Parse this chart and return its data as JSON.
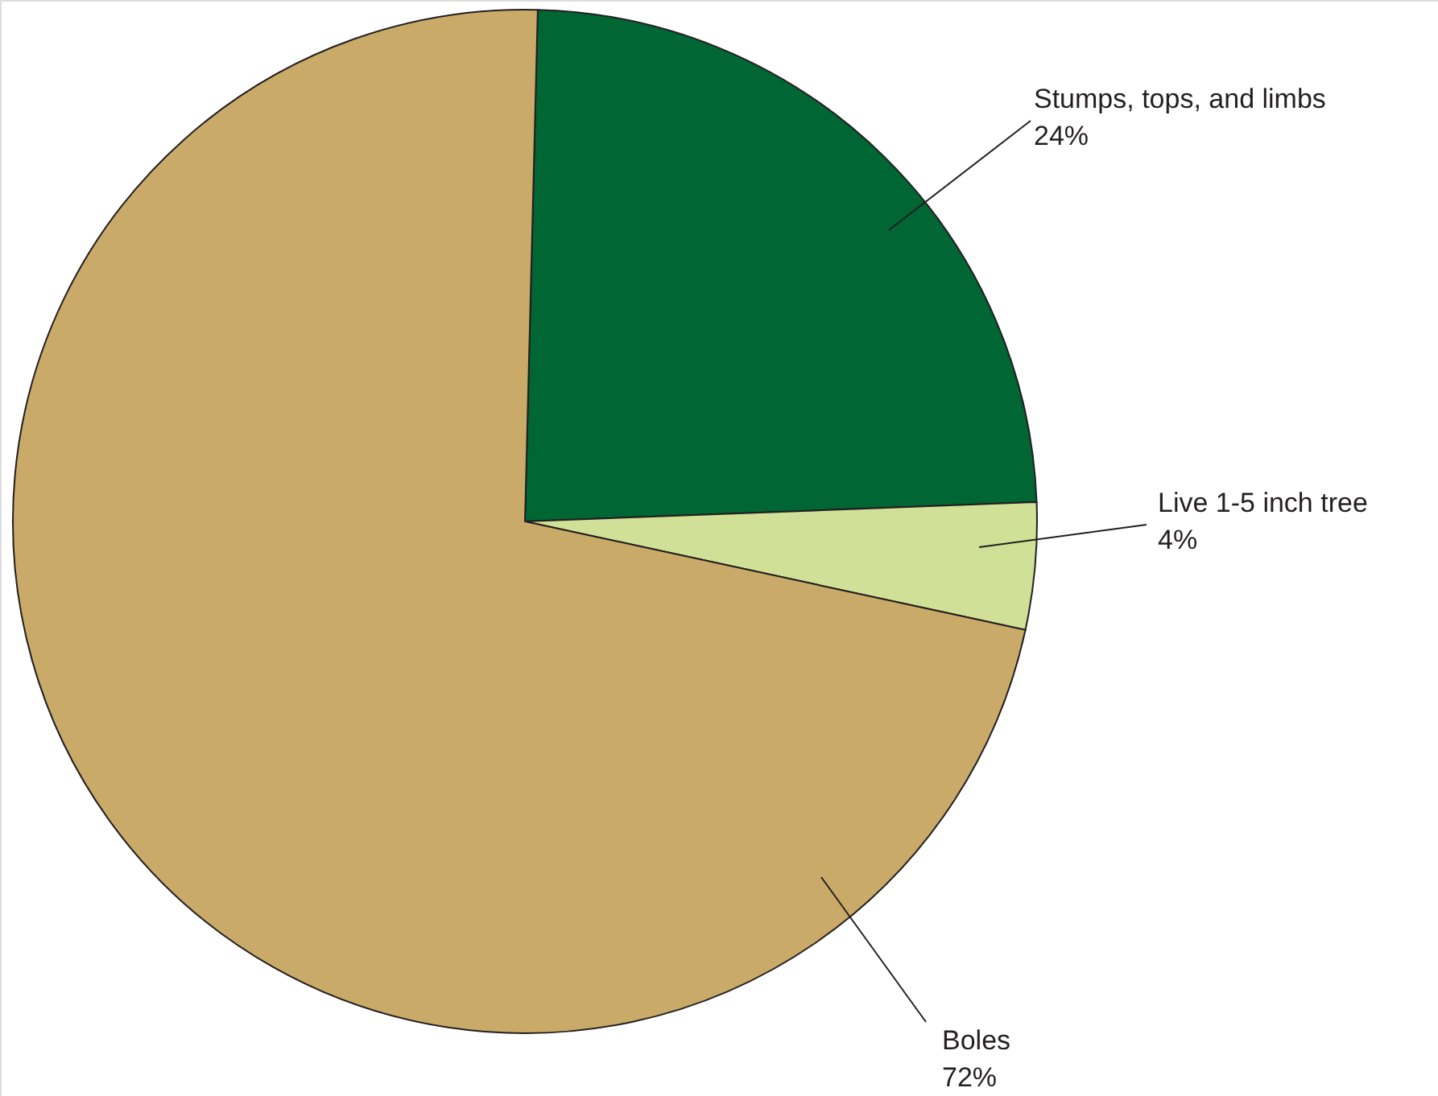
{
  "chart_data": {
    "type": "pie",
    "categories": [
      "Stumps, tops, and limbs",
      "Live 1-5 inch tree",
      "Boles"
    ],
    "values": [
      24,
      4,
      72
    ],
    "colors": [
      "#006633",
      "#d0e096",
      "#c9aa69"
    ],
    "value_labels": [
      "24%",
      "4%",
      "72%"
    ]
  }
}
